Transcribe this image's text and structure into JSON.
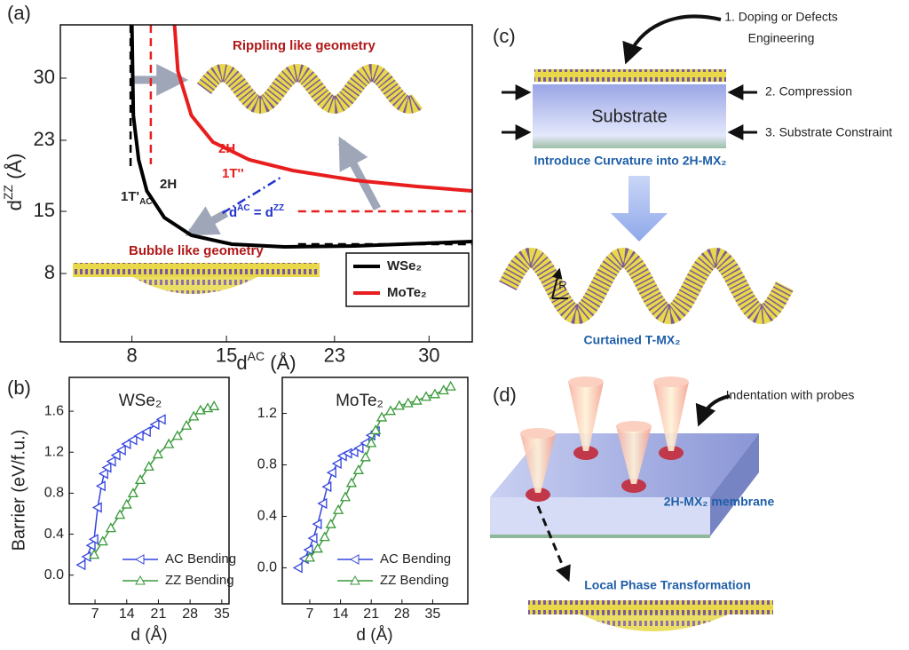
{
  "chart_data": [
    {
      "type": "line",
      "panel_label": "(a)",
      "xlabel": [
        "d",
        "AC",
        " (Å)"
      ],
      "ylabel": [
        "d",
        "ZZ",
        " (Å)"
      ],
      "xlim": [
        2.7,
        33.2
      ],
      "ylim": [
        0.3,
        36
      ],
      "xticks": [
        8,
        15,
        23,
        30
      ],
      "yticks": [
        8,
        15,
        23,
        30
      ],
      "legend": "lower right",
      "series": [
        {
          "name": "WSe₂",
          "color": "#000000",
          "x": [
            8.0,
            8.1,
            8.5,
            9.1,
            10.4,
            12.4,
            15.4,
            19.3,
            24.5,
            33.2
          ],
          "values": [
            36,
            25.8,
            20.8,
            17.3,
            14.3,
            12.3,
            11.3,
            11.0,
            11.1,
            11.6
          ]
        },
        {
          "name": "MoTe₂",
          "color": "#e81e1e",
          "x": [
            11.15,
            11.4,
            12.4,
            14.0,
            16.7,
            19.9,
            24.5,
            29.1,
            33.2
          ],
          "values": [
            36,
            30.8,
            25.8,
            22.8,
            20.8,
            19.6,
            18.5,
            17.8,
            17.3
          ]
        }
      ],
      "lines": [
        {
          "color": "#000000",
          "linestyle": "dashed",
          "x": [
            7.9,
            7.9
          ],
          "values": [
            36,
            19.8
          ]
        },
        {
          "color": "#e81e1e",
          "linestyle": "dashed",
          "x": [
            9.4,
            9.4
          ],
          "values": [
            36,
            20.3
          ]
        },
        {
          "color": "#e81e1e",
          "linestyle": "dashed",
          "x": [
            20.3,
            33.2
          ],
          "values": [
            15.0,
            15.0
          ]
        },
        {
          "color": "#000000",
          "linestyle": "dashed",
          "x": [
            20.3,
            33.2
          ],
          "values": [
            11.3,
            11.3
          ]
        },
        {
          "color": "#2233cc",
          "linestyle": "dashdot",
          "x": [
            14.7,
            19.0
          ],
          "values": [
            14.8,
            18.8
          ]
        }
      ],
      "annotations": [
        [
          "1T'",
          "AC"
        ],
        [
          "2H"
        ],
        [
          "2H"
        ],
        [
          "1T''"
        ],
        [
          "d",
          "AC",
          " = d",
          "ZZ"
        ],
        [
          "Rippling like geometry"
        ],
        [
          "Bubble like geometry"
        ]
      ]
    },
    {
      "type": "line",
      "panel_label": "(b)",
      "title": "WSe₂",
      "xlabel": "d (Å)",
      "ylabel": "Barrier (eV/f.u.)",
      "xlim": [
        1.3,
        36.6
      ],
      "ylim": [
        -0.28,
        1.93
      ],
      "xticks": [
        7,
        14,
        21,
        28,
        35
      ],
      "yticks": [
        {
          "value": 0,
          "label": "0.0"
        },
        0.4,
        0.8,
        1.2,
        1.6
      ],
      "legend": "lower right",
      "series": [
        {
          "name": "AC Bending",
          "color": "#3344dd",
          "marker": "triangle-left",
          "x": [
            4.0,
            5.2,
            6.2,
            6.8,
            7.6,
            8.4,
            9.0,
            9.7,
            10.7,
            11.7,
            12.9,
            14.0,
            15.4,
            16.8,
            18.4,
            20.3,
            21.7
          ],
          "values": [
            0.1,
            0.18,
            0.29,
            0.35,
            0.66,
            0.87,
            0.99,
            1.05,
            1.11,
            1.17,
            1.22,
            1.28,
            1.32,
            1.36,
            1.4,
            1.47,
            1.52
          ]
        },
        {
          "name": "ZZ Bending",
          "color": "#3a9a3a",
          "marker": "triangle-up",
          "x": [
            6.8,
            8.7,
            10.5,
            12.5,
            14.0,
            15.4,
            17.0,
            18.9,
            20.9,
            23.3,
            25.2,
            27.2,
            28.8,
            30.3,
            31.9,
            33.3
          ],
          "values": [
            0.2,
            0.33,
            0.46,
            0.59,
            0.69,
            0.8,
            0.93,
            1.06,
            1.18,
            1.28,
            1.36,
            1.46,
            1.55,
            1.61,
            1.63,
            1.65
          ]
        }
      ]
    },
    {
      "type": "line",
      "title": "MoTe₂",
      "xlabel": "d (Å)",
      "xlim": [
        0.74,
        43.0
      ],
      "ylim": [
        -0.28,
        1.48
      ],
      "xticks": [
        7,
        14,
        21,
        28,
        35
      ],
      "yticks": [
        {
          "value": 0,
          "label": "0.0"
        },
        0.4,
        0.8,
        1.2
      ],
      "legend": "lower right",
      "series": [
        {
          "name": "AC Bending",
          "color": "#3344dd",
          "marker": "triangle-left",
          "x": [
            4.4,
            5.8,
            6.8,
            7.8,
            8.8,
            10.0,
            11.0,
            12.1,
            13.3,
            14.5,
            15.7,
            17.1,
            18.3,
            19.7,
            21.0,
            22.0
          ],
          "values": [
            0.0,
            0.07,
            0.14,
            0.23,
            0.34,
            0.5,
            0.63,
            0.74,
            0.81,
            0.87,
            0.89,
            0.9,
            0.93,
            0.97,
            1.03,
            1.06
          ]
        },
        {
          "name": "ZZ Bending",
          "color": "#3a9a3a",
          "marker": "triangle-up",
          "x": [
            7.0,
            8.8,
            10.4,
            11.8,
            13.5,
            15.1,
            16.5,
            18.1,
            19.7,
            21.0,
            22.0,
            23.4,
            25.4,
            27.4,
            29.4,
            31.4,
            33.5,
            35.5,
            37.5,
            39.1
          ],
          "values": [
            0.08,
            0.15,
            0.24,
            0.34,
            0.45,
            0.55,
            0.66,
            0.76,
            0.86,
            0.97,
            1.07,
            1.17,
            1.22,
            1.26,
            1.28,
            1.3,
            1.33,
            1.35,
            1.38,
            1.41
          ]
        }
      ]
    }
  ],
  "panel_c": {
    "label": "(c)",
    "step1": [
      "1. Doping or Defects",
      "Engineering"
    ],
    "step2": "2. Compression",
    "step3": "3. Substrate Constraint",
    "substrate": "Substrate",
    "caption": "Introduce Curvature into 2H-MX₂",
    "radius": "R",
    "result": "Curtained T-MX₂"
  },
  "panel_d": {
    "label": "(d)",
    "probe_note": "Indentation with probes",
    "membrane": "2H-MX₂ membrane",
    "result": "Local Phase Transformation"
  }
}
